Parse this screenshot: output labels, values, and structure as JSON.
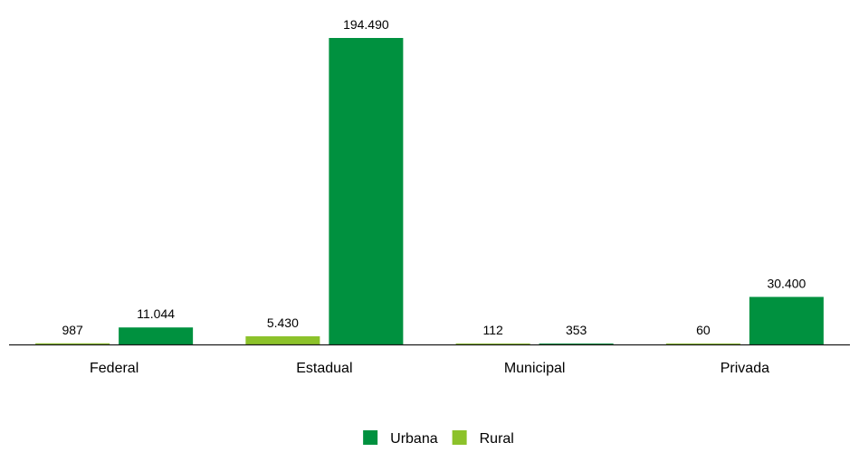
{
  "chart_data": {
    "type": "bar",
    "categories": [
      "Federal",
      "Estadual",
      "Municipal",
      "Privada"
    ],
    "series": [
      {
        "name": "Rural",
        "color": "#8cc22a",
        "values": [
          987,
          5430,
          112,
          60
        ],
        "labels": [
          "987",
          "5.430",
          "112",
          "60"
        ]
      },
      {
        "name": "Urbana",
        "color": "#00913f",
        "values": [
          11044,
          194490,
          353,
          30400
        ],
        "labels": [
          "11.044",
          "194.490",
          "353",
          "30.400"
        ]
      }
    ],
    "ylim": [
      0,
      194490
    ],
    "grid": false,
    "legend_position": "bottom-center",
    "legend_order": [
      "Urbana",
      "Rural"
    ],
    "title": "",
    "xlabel": "",
    "ylabel": ""
  }
}
